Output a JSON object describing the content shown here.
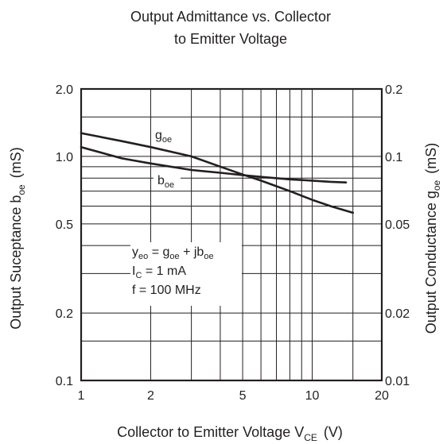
{
  "chart_data": {
    "type": "line",
    "title": [
      "Output Admittance vs. Collector",
      "to Emitter Voltage"
    ],
    "x_axis": {
      "label": "Collector to Emitter Voltage  V",
      "label_sub": "CE",
      "label_unit": "(V)",
      "scale": "log",
      "range": [
        1,
        20
      ],
      "ticks": [
        1,
        2,
        5,
        10,
        20
      ],
      "tick_labels": [
        "1",
        "2",
        "5",
        "10",
        "20"
      ]
    },
    "y_left": {
      "label": "Output Suceptance  b",
      "label_sub": "oe",
      "label_unit": "(mS)",
      "scale": "log",
      "range": [
        0.1,
        2.0
      ],
      "ticks": [
        0.1,
        0.2,
        0.5,
        1.0,
        2.0
      ],
      "tick_labels": [
        "0.1",
        "0.2",
        "0.5",
        "1.0",
        "2.0"
      ]
    },
    "y_right": {
      "label": "Output Conductance  g",
      "label_sub": "oe",
      "label_unit": "(mS)",
      "scale": "log",
      "range": [
        0.01,
        0.2
      ],
      "ticks": [
        0.01,
        0.02,
        0.05,
        0.1,
        0.2
      ],
      "tick_labels": [
        "0.01",
        "0.02",
        "0.05",
        "0.1",
        "0.2"
      ]
    },
    "grid": true,
    "series": [
      {
        "name": "g",
        "name_sub": "oe",
        "axis": "right",
        "x": [
          1,
          1.5,
          2,
          3,
          4,
          5,
          6,
          8,
          10,
          12,
          15
        ],
        "y": [
          0.127,
          0.117,
          0.11,
          0.1,
          0.09,
          0.083,
          0.078,
          0.07,
          0.064,
          0.06,
          0.056
        ]
      },
      {
        "name": "b",
        "name_sub": "oe",
        "axis": "left",
        "x": [
          1,
          1.5,
          2,
          3,
          4,
          5,
          6,
          8,
          10,
          12,
          14
        ],
        "y": [
          1.1,
          0.98,
          0.93,
          0.87,
          0.845,
          0.825,
          0.81,
          0.79,
          0.78,
          0.77,
          0.765
        ]
      }
    ],
    "annotation": {
      "lines": [
        {
          "main": "y",
          "sub": "eo",
          "rest": [
            " = g",
            "oe",
            " + jb",
            "oe"
          ]
        },
        {
          "main": "I",
          "sub": "C",
          "rest": [
            " = 1 mA"
          ]
        },
        {
          "main": "f = 100 MHz",
          "sub": "",
          "rest": []
        }
      ]
    }
  }
}
